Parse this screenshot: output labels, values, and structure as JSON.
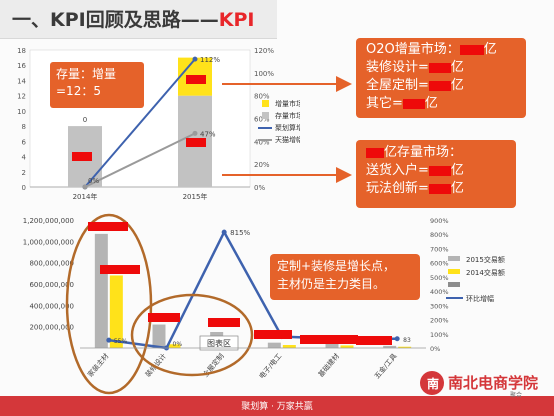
{
  "slide": {
    "title_prefix": "一、KPI回顾及思路——",
    "title_highlight": "KPI",
    "footer_text": "聚划算 · 万家共赢"
  },
  "callouts": {
    "stock_ratio": [
      "存量：增量",
      "=12：5"
    ],
    "o2o": {
      "line1": "O2O增量市场：",
      "line1_unit": "亿",
      "items": [
        {
          "label": "装修设计=",
          "unit": "亿"
        },
        {
          "label": "全屋定制=",
          "unit": "亿"
        },
        {
          "label": "其它=",
          "unit": "亿"
        }
      ]
    },
    "stock_market": {
      "line1": "亿存量市场：",
      "items": [
        {
          "label": "送货入户=",
          "unit": "亿"
        },
        {
          "label": "玩法创新=",
          "unit": "亿"
        }
      ]
    },
    "growth_note": [
      "定制+装修是增长点，",
      "主材仍是主力类目。"
    ]
  },
  "chart_data": [
    {
      "type": "bar",
      "categories": [
        "2014年",
        "2015年"
      ],
      "ylim": [
        0,
        18
      ],
      "y_ticks": [
        "0",
        "2",
        "4",
        "6",
        "8",
        "10",
        "12",
        "14",
        "16",
        "18"
      ],
      "y2lim": [
        0,
        120
      ],
      "y2_ticks": [
        "0%",
        "20%",
        "40%",
        "60%",
        "80%",
        "100%",
        "120%"
      ],
      "series": [
        {
          "name": "增量市场",
          "kind": "bar",
          "color": "#ffe21a",
          "values": [
            0,
            5
          ]
        },
        {
          "name": "存量市场",
          "kind": "bar",
          "color": "#c2c2c2",
          "values": [
            8,
            12
          ]
        },
        {
          "name": "聚划算增幅",
          "kind": "line",
          "color": "#3e62ae",
          "values": [
            0,
            112
          ]
        },
        {
          "name": "天猫增幅",
          "kind": "line",
          "color": "#9a9a9a",
          "values": [
            0,
            47
          ]
        }
      ],
      "data_labels": {
        "bar_2014": "0",
        "line_2014": "0%",
        "line1_2015": "112%",
        "line2_2015": "47%"
      }
    },
    {
      "type": "bar",
      "categories": [
        "家装主材",
        "装修设计",
        "全屋定制",
        "电子/电工",
        "基础建材",
        "五金/工具"
      ],
      "ylim": [
        0,
        1200000000
      ],
      "y_ticks": [
        "-",
        "200,000,000",
        "400,000,000",
        "600,000,000",
        "800,000,000",
        "1,000,000,000",
        "1,200,000,000"
      ],
      "y2lim": [
        0,
        900
      ],
      "y2_ticks": [
        "0%",
        "100%",
        "200%",
        "300%",
        "400%",
        "500%",
        "600%",
        "700%",
        "800%",
        "900%"
      ],
      "series": [
        {
          "name": "2015交易额",
          "kind": "bar",
          "color": "#b4b4b4",
          "values": [
            1070000000,
            220000000,
            150000000,
            50000000,
            38000000,
            20000000
          ]
        },
        {
          "name": "2014交易额",
          "kind": "bar",
          "color": "#ffe21a",
          "values": [
            680000000,
            35000000,
            15000000,
            28000000,
            24000000,
            12000000
          ]
        },
        {
          "name": "",
          "kind": "bar",
          "color": "#8c8c8c",
          "values": [
            0,
            0,
            0,
            0,
            0,
            0
          ]
        },
        {
          "name": "环比增幅",
          "kind": "line",
          "color": "#3e62ae",
          "values": [
            55,
            0,
            815,
            80,
            65,
            65
          ]
        }
      ],
      "data_labels": {
        "line_peak": "815%",
        "small_0": "0%",
        "small_55": "55%",
        "small_83": "83"
      },
      "tooltip": "图表区"
    }
  ],
  "logo": {
    "text": "南北电商学院",
    "caption": "聚合"
  }
}
